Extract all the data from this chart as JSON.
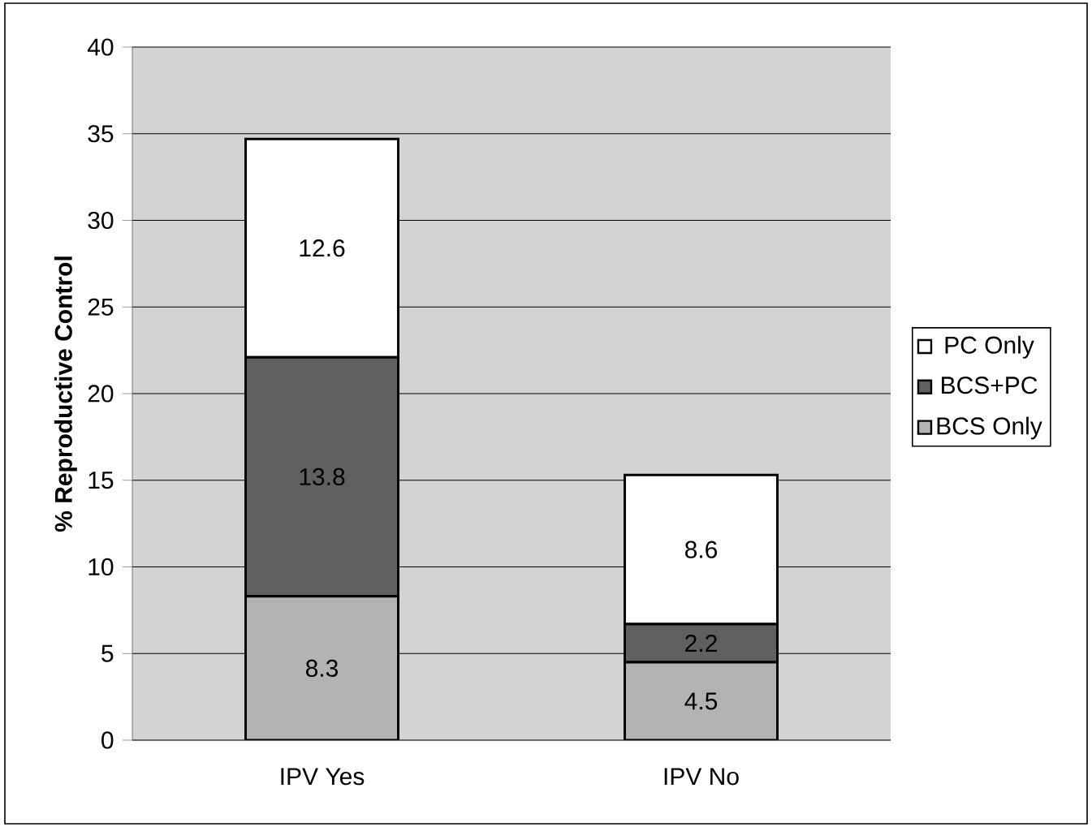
{
  "chart_data": {
    "type": "bar",
    "stacked": true,
    "ylabel": "% Reproductive Control",
    "categories": [
      "IPV Yes",
      "IPV No"
    ],
    "series": [
      {
        "name": "BCS Only",
        "color": "#b3b3b3",
        "values": [
          8.3,
          4.5
        ]
      },
      {
        "name": "BCS+PC",
        "color": "#606060",
        "values": [
          13.8,
          2.2
        ]
      },
      {
        "name": "PC Only",
        "color": "#ffffff",
        "values": [
          12.6,
          8.6
        ]
      }
    ],
    "ylim": [
      0,
      40
    ],
    "yticks": [
      0,
      5,
      10,
      15,
      20,
      25,
      30,
      35,
      40
    ],
    "grid": "y",
    "legend": "right",
    "data_labels": true
  }
}
